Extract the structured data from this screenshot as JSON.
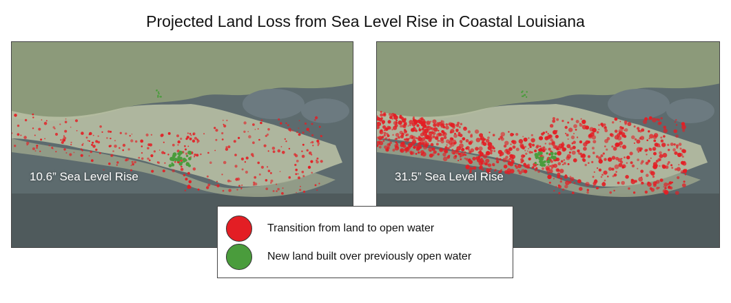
{
  "title": "Projected Land Loss from Sea Level Rise in Coastal Louisiana",
  "colors": {
    "land_loss": "#e31e24",
    "new_land": "#4a9c3c",
    "water_gulf": "#5d6b6e",
    "land": "#8c9a7a",
    "marsh": "#b7bfa3",
    "bay": "#6c7a80"
  },
  "maps": [
    {
      "label": "10.6” Sea Level Rise",
      "severity": "low"
    },
    {
      "label": "31.5” Sea Level Rise",
      "severity": "high"
    }
  ],
  "legend": {
    "items": [
      {
        "label": "Transition from land to open water",
        "color": "#e31e24"
      },
      {
        "label": "New land built over previously open water",
        "color": "#4a9c3c"
      }
    ]
  }
}
